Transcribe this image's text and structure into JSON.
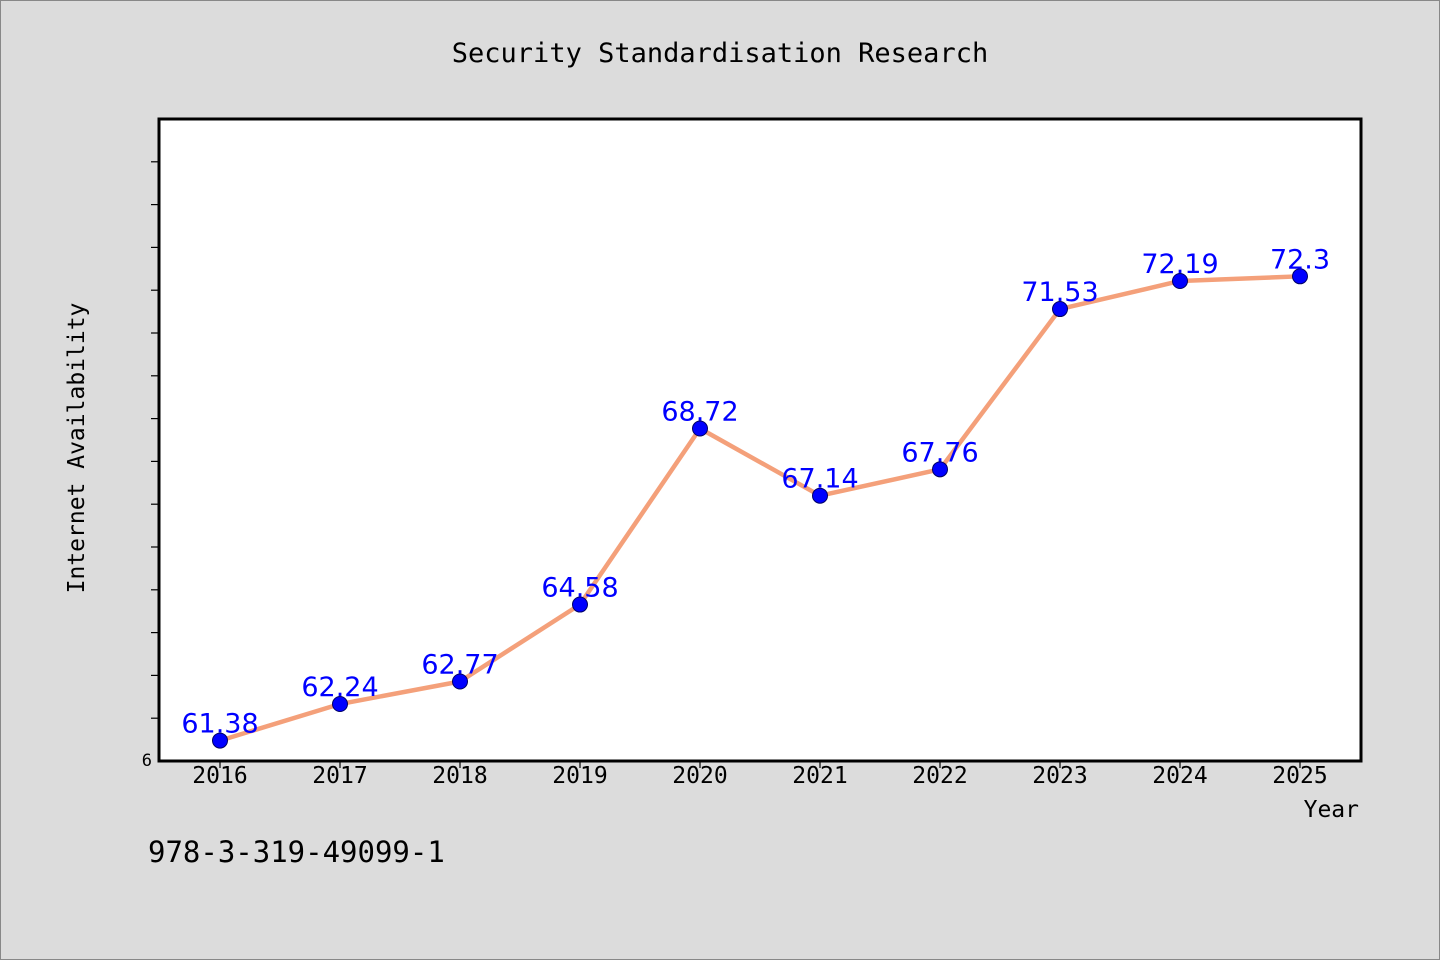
{
  "chart_data": {
    "type": "line",
    "title": "Security Standardisation Research",
    "xlabel": "Year",
    "ylabel": "Internet Availability",
    "categories": [
      "2016",
      "2017",
      "2018",
      "2019",
      "2020",
      "2021",
      "2022",
      "2023",
      "2024",
      "2025"
    ],
    "series": [
      {
        "values": [
          61.38,
          62.24,
          62.77,
          64.58,
          68.72,
          67.14,
          67.76,
          71.53,
          72.19,
          72.3
        ],
        "labels": [
          "61.38",
          "62.24",
          "62.77",
          "64.58",
          "68.72",
          "67.14",
          "67.76",
          "71.53",
          "72.19",
          "72.3"
        ],
        "color": "#f4a07a",
        "marker_color": "#0000ff"
      }
    ],
    "ylim": [
      60.9,
      76.0
    ],
    "y_tick_label": "6",
    "grid": false,
    "legend": "none"
  },
  "footnote": "978-3-319-49099-1",
  "colors": {
    "background": "#dcdcdc",
    "plot_background": "#ffffff",
    "data_label": "#0000ff"
  }
}
